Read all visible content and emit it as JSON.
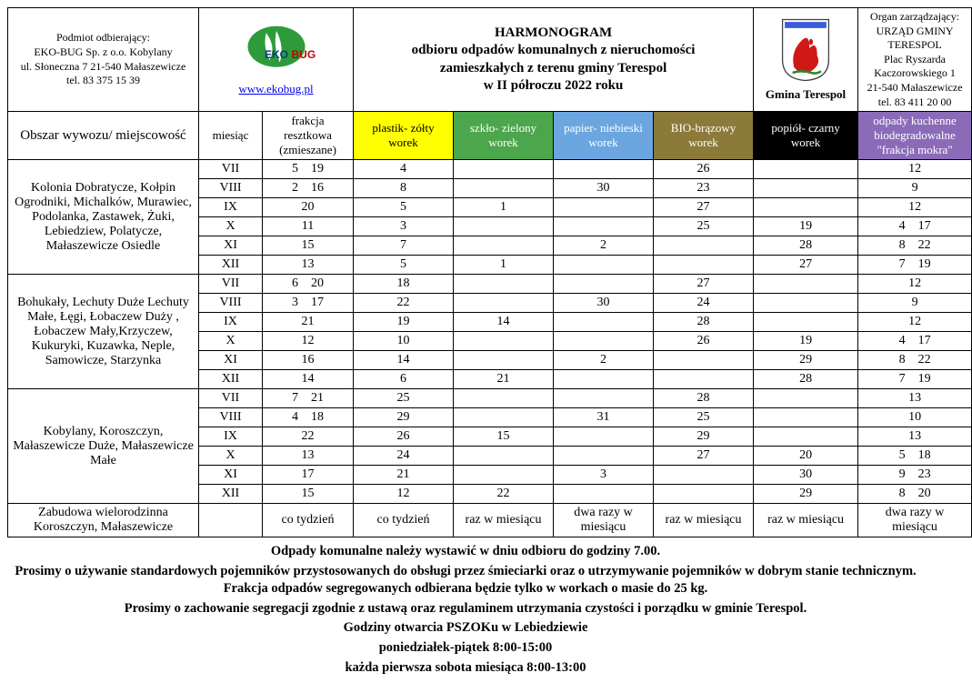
{
  "header": {
    "receiver_title": "Podmiot odbierający:",
    "receiver_line1": "EKO-BUG Sp. z o.o. Kobylany",
    "receiver_line2": "ul. Słoneczna 7 21-540 Małaszewicze",
    "receiver_line3": "tel. 83 375 15 39",
    "ekobug_link": "www.ekobug.pl",
    "title_line1": "HARMONOGRAM",
    "title_line2": "odbioru odpadów komunalnych z nieruchomości",
    "title_line3": "zamieszkałych z terenu gminy Terespol",
    "title_line4": "w II półroczu 2022 roku",
    "gmina_label": "Gmina Terespol",
    "organ_title": "Organ zarządzający:",
    "organ_line1": "URZĄD GMINY TERESPOL",
    "organ_line2": "Plac Ryszarda Kaczorowskiego 1",
    "organ_line3": "21-540 Małaszewicze",
    "organ_line4": "tel. 83 411 20 00"
  },
  "columns": {
    "area": "Obszar wywozu/ miejscowość",
    "month": "miesiąc",
    "mixed_l1": "frakcja resztkowa (zmieszane)",
    "plastic": "plastik- zółty worek",
    "glass": "szkło- zielony worek",
    "paper": "papier- niebieski worek",
    "bio": "BIO-brązowy worek",
    "ash": "popiół- czarny worek",
    "kitchen_l1": "odpady kuchenne biodegradowalne \"frakcja mokra\""
  },
  "column_colors": {
    "area": "#ffffff",
    "month": "#ffffff",
    "mixed": "#ffffff",
    "plastic": "#ffff00",
    "glass": "#4ca64c",
    "paper": "#6ca6e0",
    "bio": "#8b7a3a",
    "ash": "#000000",
    "kitchen": "#8b6bb8"
  },
  "column_text_colors": {
    "plastic": "#000000",
    "glass": "#ffffff",
    "paper": "#ffffff",
    "bio": "#ffffff",
    "ash": "#ffffff",
    "kitchen": "#ffffff"
  },
  "column_widths": {
    "area": 210,
    "month": 70,
    "mixed": 100,
    "plastic": 110,
    "glass": 110,
    "paper": 110,
    "bio": 110,
    "ash": 115,
    "kitchen": 125
  },
  "areas": [
    {
      "name": "Kolonia Dobratycze, Kołpin Ogrodniki, Michalków, Murawiec, Podolanka, Zastawek, Żuki, Lebiedziew, Polatycze, Małaszewicze Osiedle",
      "rows": [
        {
          "m": "VII",
          "mixed": "5    19",
          "plastic": "4",
          "glass": "",
          "paper": "",
          "bio": "26",
          "ash": "",
          "kitchen": "12"
        },
        {
          "m": "VIII",
          "mixed": "2    16",
          "plastic": "8",
          "glass": "",
          "paper": "30",
          "bio": "23",
          "ash": "",
          "kitchen": "9"
        },
        {
          "m": "IX",
          "mixed": "20",
          "plastic": "5",
          "glass": "1",
          "paper": "",
          "bio": "27",
          "ash": "",
          "kitchen": "12"
        },
        {
          "m": "X",
          "mixed": "11",
          "plastic": "3",
          "glass": "",
          "paper": "",
          "bio": "25",
          "ash": "19",
          "kitchen": "4    17"
        },
        {
          "m": "XI",
          "mixed": "15",
          "plastic": "7",
          "glass": "",
          "paper": "2",
          "bio": "",
          "ash": "28",
          "kitchen": "8    22"
        },
        {
          "m": "XII",
          "mixed": "13",
          "plastic": "5",
          "glass": "1",
          "paper": "",
          "bio": "",
          "ash": "27",
          "kitchen": "7    19"
        }
      ]
    },
    {
      "name": "Bohukały, Lechuty Duże Lechuty Małe, Łęgi, Łobaczew Duży , Łobaczew Mały,Krzyczew, Kukuryki, Kuzawka, Neple, Samowicze, Starzynka",
      "rows": [
        {
          "m": "VII",
          "mixed": "6    20",
          "plastic": "18",
          "glass": "",
          "paper": "",
          "bio": "27",
          "ash": "",
          "kitchen": "12"
        },
        {
          "m": "VIII",
          "mixed": "3    17",
          "plastic": "22",
          "glass": "",
          "paper": "30",
          "bio": "24",
          "ash": "",
          "kitchen": "9"
        },
        {
          "m": "IX",
          "mixed": "21",
          "plastic": "19",
          "glass": "14",
          "paper": "",
          "bio": "28",
          "ash": "",
          "kitchen": "12"
        },
        {
          "m": "X",
          "mixed": "12",
          "plastic": "10",
          "glass": "",
          "paper": "",
          "bio": "26",
          "ash": "19",
          "kitchen": "4    17"
        },
        {
          "m": "XI",
          "mixed": "16",
          "plastic": "14",
          "glass": "",
          "paper": "2",
          "bio": "",
          "ash": "29",
          "kitchen": "8    22"
        },
        {
          "m": "XII",
          "mixed": "14",
          "plastic": "6",
          "glass": "21",
          "paper": "",
          "bio": "",
          "ash": "28",
          "kitchen": "7    19"
        }
      ]
    },
    {
      "name": "Kobylany, Koroszczyn, Małaszewicze Duże, Małaszewicze Małe",
      "rows": [
        {
          "m": "VII",
          "mixed": "7    21",
          "plastic": "25",
          "glass": "",
          "paper": "",
          "bio": "28",
          "ash": "",
          "kitchen": "13"
        },
        {
          "m": "VIII",
          "mixed": "4    18",
          "plastic": "29",
          "glass": "",
          "paper": "31",
          "bio": "25",
          "ash": "",
          "kitchen": "10"
        },
        {
          "m": "IX",
          "mixed": "22",
          "plastic": "26",
          "glass": "15",
          "paper": "",
          "bio": "29",
          "ash": "",
          "kitchen": "13"
        },
        {
          "m": "X",
          "mixed": "13",
          "plastic": "24",
          "glass": "",
          "paper": "",
          "bio": "27",
          "ash": "20",
          "kitchen": "5    18"
        },
        {
          "m": "XI",
          "mixed": "17",
          "plastic": "21",
          "glass": "",
          "paper": "3",
          "bio": "",
          "ash": "30",
          "kitchen": "9    23"
        },
        {
          "m": "XII",
          "mixed": "15",
          "plastic": "12",
          "glass": "22",
          "paper": "",
          "bio": "",
          "ash": "29",
          "kitchen": "8    20"
        }
      ]
    }
  ],
  "freq_row": {
    "area": "Zabudowa wielorodzinna Koroszczyn, Małaszewicze",
    "month": "",
    "mixed": "co tydzień",
    "plastic": "co tydzień",
    "glass": "raz w miesiącu",
    "paper": "dwa razy w miesiącu",
    "bio": "raz w miesiącu",
    "ash": "raz w miesiącu",
    "kitchen": "dwa razy w miesiącu"
  },
  "notes": {
    "n1": "Odpady komunalne należy wystawić w dniu odbioru do godziny 7.00.",
    "n2": "Prosimy o używanie standardowych pojemników przystosowanych do obsługi przez śmieciarki oraz o utrzymywanie pojemników w dobrym stanie technicznym.  Frakcja odpadów segregowanych odbierana będzie tylko w workach o masie do 25 kg.",
    "n3": "Prosimy o zachowanie segregacji zgodnie z ustawą oraz regulaminem utrzymania czystości i porządku w gminie Terespol.",
    "n4": "Godziny otwarcia PSZOKu w Lebiedziewie",
    "n5": "poniedziałek-piątek  8:00-15:00",
    "n6": "każda pierwsza sobota miesiąca 8:00-13:00"
  }
}
